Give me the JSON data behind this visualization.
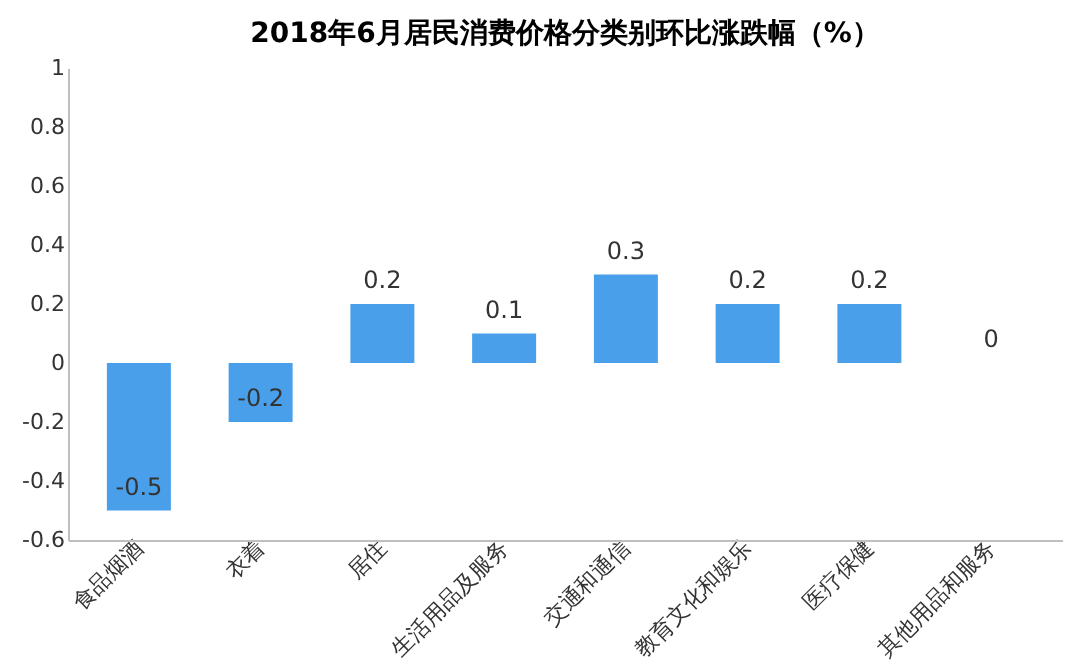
{
  "chart_data": {
    "type": "bar",
    "title": "2018年6月居民消费价格分类别环比涨跌幅（%）",
    "categories": [
      "食品烟酒",
      "衣着",
      "居住",
      "生活用品及服务",
      "交通和通信",
      "教育文化和娱乐",
      "医疗保健",
      "其他用品和服务"
    ],
    "values": [
      -0.5,
      -0.2,
      0.2,
      0.1,
      0.3,
      0.2,
      0.2,
      0
    ],
    "color": "#4a9fea",
    "ylim": [
      -0.6,
      1
    ],
    "yticks": [
      -0.6,
      -0.4,
      -0.2,
      0,
      0.2,
      0.4,
      0.6,
      0.8,
      1
    ],
    "grid": false,
    "data_labels": true
  }
}
